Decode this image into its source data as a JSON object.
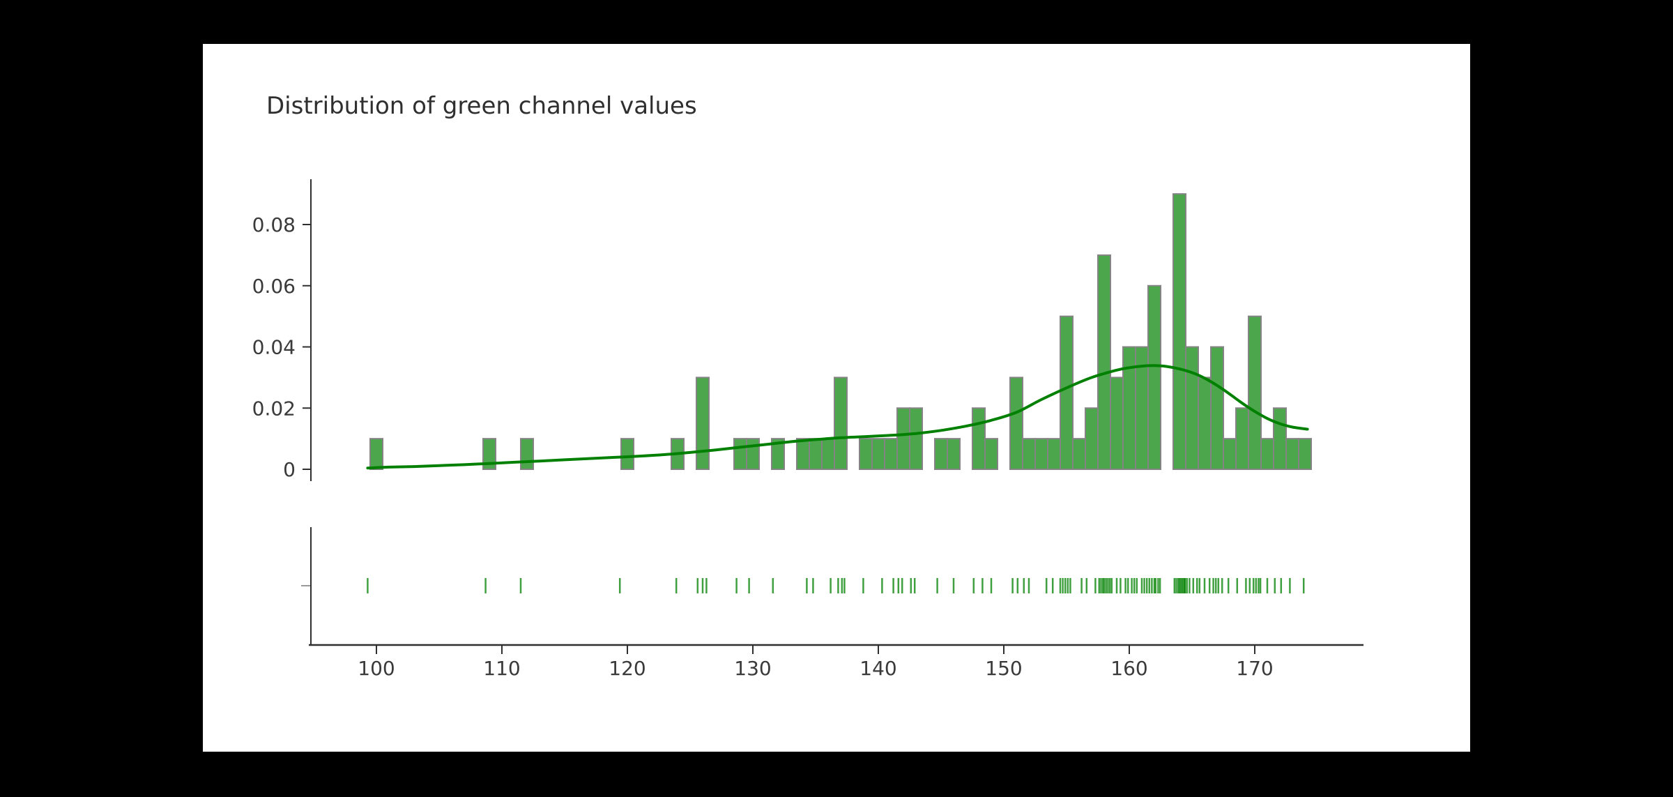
{
  "style": {
    "outside_background": "#000000",
    "paper_background": "#ffffff",
    "bar_fill": "rgba(0,128,0,0.7)",
    "bar_border": "#848484",
    "kde_line_color": "#008000",
    "rug_color": "rgba(0,128,0,0.75)",
    "axis_color": "#2f2f2f",
    "tick_label_color": "#3a3a3a",
    "title_color": "#2f2f2f"
  },
  "chart_data": {
    "type": "histogram",
    "title": "Distribution of green channel values",
    "xlabel": "",
    "ylabel": "",
    "legend": "none",
    "xlim": [
      94.6,
      178.7
    ],
    "ylim": [
      -0.004,
      0.095
    ],
    "grid": false,
    "histogram": {
      "histnorm": "probability density",
      "bin_width": 1,
      "bin_centers": [
        100,
        109,
        112,
        120,
        124,
        126,
        129,
        130,
        132,
        134,
        135,
        136,
        137,
        139,
        140,
        141,
        142,
        143,
        145,
        146,
        148,
        149,
        151,
        152,
        153,
        154,
        155,
        156,
        157,
        158,
        159,
        160,
        161,
        162,
        164,
        165,
        166,
        167,
        168,
        169,
        170,
        171,
        172,
        173,
        174
      ],
      "densities": [
        0.01,
        0.01,
        0.01,
        0.01,
        0.01,
        0.03,
        0.01,
        0.01,
        0.01,
        0.01,
        0.01,
        0.01,
        0.03,
        0.01,
        0.01,
        0.01,
        0.02,
        0.02,
        0.01,
        0.01,
        0.02,
        0.01,
        0.03,
        0.01,
        0.01,
        0.01,
        0.05,
        0.01,
        0.02,
        0.07,
        0.03,
        0.04,
        0.04,
        0.06,
        0.09,
        0.04,
        0.03,
        0.04,
        0.01,
        0.02,
        0.05,
        0.01,
        0.02,
        0.01,
        0.01
      ],
      "counts": [
        1,
        1,
        1,
        1,
        1,
        3,
        1,
        1,
        1,
        1,
        1,
        1,
        3,
        1,
        1,
        1,
        2,
        2,
        1,
        1,
        2,
        1,
        3,
        1,
        1,
        1,
        5,
        1,
        2,
        7,
        3,
        4,
        4,
        6,
        9,
        4,
        3,
        4,
        1,
        2,
        5,
        1,
        2,
        1,
        1
      ]
    },
    "kde_curve": {
      "x": [
        99.3,
        101,
        103,
        105,
        107,
        109,
        111,
        113,
        115,
        117,
        119,
        121,
        123,
        125,
        127,
        129,
        131,
        133,
        135,
        137,
        139,
        141,
        143,
        145,
        147,
        149,
        151,
        153,
        155,
        157,
        159,
        160,
        161,
        162,
        163,
        164,
        165,
        166,
        167,
        168,
        169,
        170,
        171,
        172,
        173,
        174.2
      ],
      "y": [
        0.0004,
        0.0007,
        0.0009,
        0.0012,
        0.0015,
        0.0019,
        0.0023,
        0.0027,
        0.0031,
        0.0035,
        0.0039,
        0.0043,
        0.0048,
        0.0055,
        0.0063,
        0.0072,
        0.0081,
        0.009,
        0.0097,
        0.0103,
        0.0107,
        0.0111,
        0.0117,
        0.0127,
        0.0141,
        0.016,
        0.0186,
        0.0228,
        0.0266,
        0.03,
        0.0324,
        0.0332,
        0.0337,
        0.0339,
        0.0336,
        0.0328,
        0.0316,
        0.0298,
        0.0274,
        0.0246,
        0.0216,
        0.0189,
        0.0166,
        0.0149,
        0.0138,
        0.0131
      ]
    },
    "rug_values": [
      99.3,
      108.7,
      111.5,
      119.4,
      123.9,
      125.6,
      126.0,
      126.3,
      128.7,
      129.7,
      131.6,
      134.3,
      134.8,
      136.2,
      136.8,
      137.1,
      137.3,
      138.8,
      140.3,
      141.2,
      141.6,
      141.9,
      142.6,
      142.9,
      144.7,
      146.0,
      147.6,
      148.3,
      149.0,
      150.7,
      151.1,
      151.6,
      152.0,
      153.4,
      153.9,
      154.5,
      154.7,
      154.9,
      155.1,
      155.3,
      156.2,
      156.6,
      157.3,
      157.6,
      157.75,
      157.9,
      158.0,
      158.15,
      158.3,
      158.45,
      158.6,
      159.0,
      159.3,
      159.7,
      159.9,
      160.2,
      160.4,
      160.6,
      161.0,
      161.2,
      161.4,
      161.6,
      161.8,
      162.0,
      162.1,
      162.3,
      162.45,
      163.6,
      163.75,
      163.9,
      164.0,
      164.1,
      164.2,
      164.3,
      164.4,
      164.45,
      164.6,
      164.8,
      165.1,
      165.4,
      165.6,
      166.0,
      166.4,
      166.7,
      166.9,
      167.1,
      167.4,
      167.9,
      168.6,
      169.3,
      169.6,
      169.9,
      170.1,
      170.3,
      170.45,
      171.0,
      171.6,
      172.1,
      172.8,
      173.9
    ],
    "x_axis": {
      "tick_values": [
        100,
        110,
        120,
        130,
        140,
        150,
        160,
        170
      ],
      "tick_labels": [
        "100",
        "110",
        "120",
        "130",
        "140",
        "150",
        "160",
        "170"
      ]
    },
    "y_axis": {
      "tick_values": [
        0,
        0.02,
        0.04,
        0.06,
        0.08
      ],
      "tick_labels": [
        "0",
        "0.02",
        "0.04",
        "0.06",
        "0.08"
      ]
    },
    "rug_axis_tick_label": ""
  }
}
